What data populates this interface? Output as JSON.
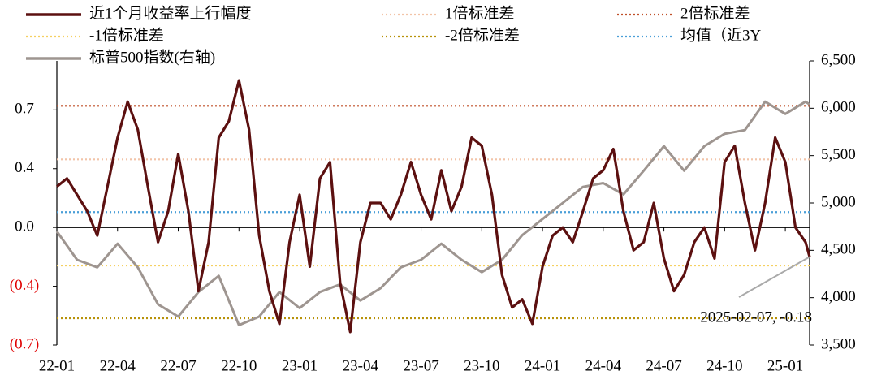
{
  "chart_data": {
    "type": "line",
    "annotation": "2025-02-07, -0.18",
    "xlim": [
      0,
      37.2
    ],
    "xticks": [
      {
        "value": 0,
        "label": "22-01"
      },
      {
        "value": 3,
        "label": "22-04"
      },
      {
        "value": 6,
        "label": "22-07"
      },
      {
        "value": 9,
        "label": "22-10"
      },
      {
        "value": 12,
        "label": "23-01"
      },
      {
        "value": 15,
        "label": "23-04"
      },
      {
        "value": 18,
        "label": "23-07"
      },
      {
        "value": 21,
        "label": "23-10"
      },
      {
        "value": 24,
        "label": "24-01"
      },
      {
        "value": 27,
        "label": "24-04"
      },
      {
        "value": 30,
        "label": "24-07"
      },
      {
        "value": 33,
        "label": "24-10"
      },
      {
        "value": 36,
        "label": "25-01"
      }
    ],
    "ylim": [
      -0.72,
      1.02
    ],
    "yticks": [
      {
        "value": 0.72,
        "label": "0.7"
      },
      {
        "value": 0.36,
        "label": "0.4"
      },
      {
        "value": 0,
        "label": "0.0"
      },
      {
        "value": -0.36,
        "label": "(0.4)"
      },
      {
        "value": -0.72,
        "label": "(0.7)"
      }
    ],
    "y2lim": [
      3500,
      6500
    ],
    "y2ticks": [
      {
        "value": 3500,
        "label": "3,500"
      },
      {
        "value": 4000,
        "label": "4,000"
      },
      {
        "value": 4500,
        "label": "4,500"
      },
      {
        "value": 5000,
        "label": "5,000"
      },
      {
        "value": 5500,
        "label": "5,500"
      },
      {
        "value": 6000,
        "label": "6,000"
      },
      {
        "value": 6500,
        "label": "6,500"
      }
    ],
    "series": [
      {
        "name": "近1个月收益率上行幅度",
        "color": "#5c1010",
        "x": [
          0,
          0.5,
          1,
          1.5,
          2,
          2.5,
          3,
          3.5,
          4,
          4.5,
          5,
          5.5,
          6,
          6.5,
          7,
          7.5,
          8,
          8.5,
          9,
          9.5,
          10,
          10.5,
          11,
          11.5,
          12,
          12.5,
          13,
          13.5,
          14,
          14.5,
          15,
          15.5,
          16,
          16.5,
          17,
          17.5,
          18,
          18.5,
          19,
          19.5,
          20,
          20.5,
          21,
          21.5,
          22,
          22.5,
          23,
          23.5,
          24,
          24.5,
          25,
          25.5,
          26,
          26.5,
          27,
          27.5,
          28,
          28.5,
          29,
          29.5,
          30,
          30.5,
          31,
          31.5,
          32,
          32.5,
          33,
          33.5,
          34,
          34.5,
          35,
          35.5,
          36,
          36.5,
          37,
          37.2
        ],
        "values": [
          0.25,
          0.3,
          0.2,
          0.1,
          -0.05,
          0.25,
          0.55,
          0.77,
          0.6,
          0.25,
          -0.09,
          0.1,
          0.45,
          0.1,
          -0.39,
          -0.09,
          0.55,
          0.65,
          0.9,
          0.6,
          -0.05,
          -0.39,
          -0.59,
          -0.09,
          0.2,
          -0.24,
          0.3,
          0.4,
          -0.34,
          -0.64,
          -0.09,
          0.15,
          0.15,
          0.05,
          0.2,
          0.4,
          0.2,
          0.05,
          0.35,
          0.1,
          0.25,
          0.55,
          0.5,
          0.2,
          -0.29,
          -0.49,
          -0.44,
          -0.59,
          -0.24,
          -0.05,
          0.0,
          -0.09,
          0.1,
          0.3,
          0.35,
          0.48,
          0.1,
          -0.14,
          -0.09,
          0.15,
          -0.19,
          -0.39,
          -0.29,
          -0.09,
          0.0,
          -0.19,
          0.4,
          0.5,
          0.15,
          -0.14,
          0.15,
          0.55,
          0.4,
          0.0,
          -0.09,
          -0.18
        ]
      },
      {
        "name": "1倍标准差",
        "color": "#f2c4a8",
        "value": 0.417
      },
      {
        "name": "2倍标准差",
        "color": "#c0502a",
        "value": 0.745
      },
      {
        "name": "-1倍标准差",
        "color": "#f5d060",
        "value": -0.233
      },
      {
        "name": "-2倍标准差",
        "color": "#b8920a",
        "value": -0.556
      },
      {
        "name": "均值（近3Y",
        "color": "#4a9fd8",
        "value": 0.094
      },
      {
        "name": "标普500指数(右轴)",
        "color": "#9e9590",
        "axis": "y2",
        "x": [
          0,
          1,
          2,
          3,
          4,
          5,
          6,
          7,
          8,
          9,
          10,
          11,
          12,
          13,
          14,
          15,
          16,
          17,
          18,
          19,
          20,
          21,
          22,
          23,
          24,
          25,
          26,
          27,
          28,
          29,
          30,
          31,
          32,
          33,
          34,
          35,
          36,
          37,
          37.2
        ],
        "values": [
          4700,
          4400,
          4320,
          4570,
          4320,
          3930,
          3800,
          4060,
          4230,
          3710,
          3800,
          4060,
          3890,
          4060,
          4140,
          3970,
          4100,
          4320,
          4400,
          4570,
          4400,
          4270,
          4400,
          4660,
          4830,
          5000,
          5170,
          5210,
          5090,
          5340,
          5600,
          5340,
          5600,
          5730,
          5770,
          6070,
          5940,
          6070,
          6040
        ]
      }
    ]
  }
}
